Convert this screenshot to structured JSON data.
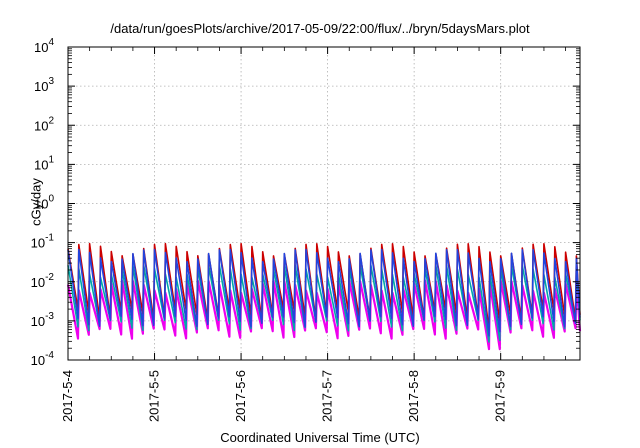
{
  "chart_data": {
    "type": "line",
    "title": "/data/run/goesPlots/archive/2017-05-09/22:00/flux/../bryn/5daysMars.plot",
    "xlabel": "Coordinated Universal Time (UTC)",
    "ylabel": "cGy/day",
    "y_scale": "log",
    "ylim": [
      0.0001,
      10000
    ],
    "xlim": [
      "2017-05-04 00:00",
      "2017-05-09 22:00"
    ],
    "grid": true,
    "x_ticks": [
      "2017-5-4",
      "2017-5-5",
      "2017-5-6",
      "2017-5-7",
      "2017-5-8",
      "2017-5-9"
    ],
    "y_ticks": [
      {
        "base": "10",
        "exp": "-4"
      },
      {
        "base": "10",
        "exp": "-3"
      },
      {
        "base": "10",
        "exp": "-2"
      },
      {
        "base": "10",
        "exp": "-1"
      },
      {
        "base": "10",
        "exp": "0"
      },
      {
        "base": "10",
        "exp": "1"
      },
      {
        "base": "10",
        "exp": "2"
      },
      {
        "base": "10",
        "exp": "3"
      },
      {
        "base": "10",
        "exp": "4"
      }
    ],
    "series_colors": [
      "#cc0000",
      "#2244dd",
      "#00a8a8",
      "#ee00ee"
    ],
    "sawtooth": {
      "period_hours": 3,
      "peak_values": [
        0.07,
        0.05,
        0.02,
        0.008
      ],
      "trough_values": [
        0.0015,
        0.001,
        0.0008,
        0.0005
      ]
    },
    "dropout": {
      "start": "2017-05-08 19:30",
      "end": "2017-05-08 22:00",
      "minimum": 0.0001
    }
  }
}
